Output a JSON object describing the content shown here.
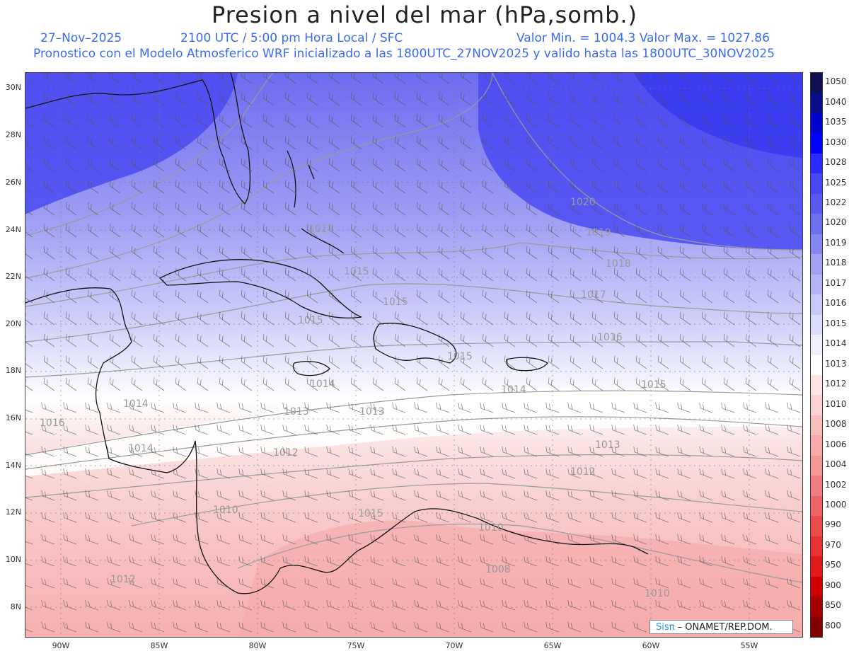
{
  "header": {
    "title": "Presion a nivel del mar (hPa,somb.)",
    "date": "27–Nov–2025",
    "time": "2100 UTC / 5:00 pm Hora Local / SFC",
    "minmax": "Valor Min. = 1004.3   Valor Max. = 1027.86",
    "model_line": "Pronostico con el Modelo Atmosferico WRF inicializado a las 1800UTC_27NOV2025 y valido hasta las  1800UTC_30NOV2025"
  },
  "axes": {
    "lat_labels": [
      "30N",
      "28N",
      "26N",
      "24N",
      "22N",
      "20N",
      "18N",
      "16N",
      "14N",
      "12N",
      "10N",
      "8N"
    ],
    "lon_labels": [
      "90W",
      "85W",
      "80W",
      "75W",
      "70W",
      "65W",
      "60W",
      "55W"
    ]
  },
  "contour_labels": [
    "1020",
    "1019",
    "1018",
    "1017",
    "1016",
    "1015",
    "1014",
    "1013",
    "1012",
    "1010",
    "1008",
    "1017",
    "1015",
    "1015",
    "1015",
    "1014",
    "1014",
    "1013",
    "1012",
    "1010",
    "1015",
    "1016",
    "1015",
    "1014",
    "1013",
    "1012",
    "1010"
  ],
  "colorbar": {
    "levels": [
      "1050",
      "1040",
      "1035",
      "1030",
      "1028",
      "1025",
      "1022",
      "1020",
      "1019",
      "1018",
      "1017",
      "1016",
      "1015",
      "1014",
      "1013",
      "1012",
      "1010",
      "1008",
      "1006",
      "1004",
      "1002",
      "1000",
      "990",
      "970",
      "950",
      "900",
      "850",
      "800"
    ],
    "colors": [
      "#101050",
      "#0a0a8c",
      "#0000c8",
      "#0000ff",
      "#2b2bff",
      "#4747f5",
      "#5a5af0",
      "#6e6ef0",
      "#8686f2",
      "#a0a0f5",
      "#b4b4f7",
      "#c8c8f9",
      "#dcdcfb",
      "#efeffd",
      "#ffffff",
      "#fde6e6",
      "#fbd2d2",
      "#f8bebe",
      "#f6aaaa",
      "#f39696",
      "#f07d7d",
      "#ee6464",
      "#ea4b4b",
      "#e63232",
      "#e01919",
      "#d00000",
      "#a80000",
      "#800000"
    ]
  },
  "logo": {
    "brand": "Sisπ",
    "text": "– ONAMET/REP.DOM."
  }
}
